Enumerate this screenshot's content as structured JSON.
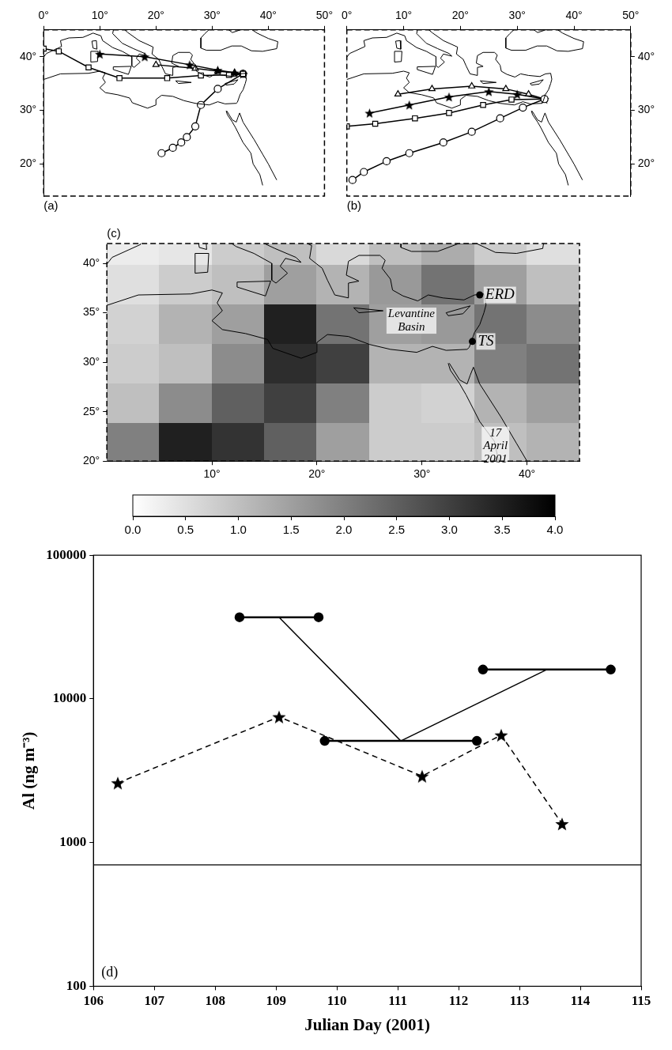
{
  "coastlines": [
    [
      [
        -1,
        38.5
      ],
      [
        0,
        39
      ],
      [
        -0.3,
        39.5
      ],
      [
        0.5,
        40.6
      ],
      [
        3.2,
        41.9
      ],
      [
        3,
        43
      ],
      [
        4.5,
        43.5
      ],
      [
        7,
        43.6
      ],
      [
        8.8,
        44.4
      ],
      [
        10.2,
        43.9
      ],
      [
        10.5,
        43
      ],
      [
        12.3,
        41.7
      ],
      [
        14,
        41
      ],
      [
        15.7,
        40
      ],
      [
        15.7,
        38.3
      ],
      [
        16.1,
        38
      ],
      [
        17.2,
        39
      ],
      [
        16.5,
        39.7
      ],
      [
        17,
        40.5
      ],
      [
        18.5,
        40.1
      ],
      [
        18,
        40.6
      ],
      [
        16,
        41.5
      ],
      [
        14,
        42.5
      ],
      [
        12.3,
        44.3
      ],
      [
        12.5,
        45.5
      ],
      [
        13.7,
        45.7
      ],
      [
        15,
        44.5
      ],
      [
        17,
        43
      ],
      [
        19.5,
        41.8
      ],
      [
        19.3,
        40.5
      ],
      [
        20.5,
        39.5
      ],
      [
        21,
        38.3
      ],
      [
        21.7,
        36.8
      ],
      [
        23,
        36.5
      ],
      [
        23,
        38
      ],
      [
        24,
        38.2
      ],
      [
        22.8,
        38.8
      ],
      [
        23,
        40.2
      ],
      [
        24,
        40.8
      ],
      [
        26,
        40.8
      ],
      [
        26.5,
        40.3
      ],
      [
        26.2,
        39.5
      ],
      [
        27,
        38.4
      ],
      [
        27.2,
        37.3
      ],
      [
        28.2,
        36.7
      ],
      [
        29.6,
        36.2
      ],
      [
        30.6,
        36.8
      ],
      [
        32,
        36.5
      ],
      [
        34,
        36.3
      ],
      [
        35,
        36.8
      ],
      [
        35.9,
        36.9
      ],
      [
        36.1,
        35.8
      ],
      [
        35.9,
        35
      ],
      [
        35.5,
        33.8
      ],
      [
        35,
        33
      ],
      [
        34.5,
        31.5
      ]
    ],
    [
      [
        -1,
        35.4
      ],
      [
        3,
        36.8
      ],
      [
        8,
        36.9
      ],
      [
        10,
        37.3
      ],
      [
        11,
        37
      ],
      [
        10.5,
        36
      ],
      [
        11,
        35.2
      ],
      [
        10,
        34.2
      ],
      [
        11,
        33.3
      ],
      [
        13.2,
        32.9
      ],
      [
        15.3,
        32.3
      ],
      [
        15.8,
        31.4
      ],
      [
        18.5,
        30.4
      ],
      [
        20,
        31
      ],
      [
        20,
        32
      ],
      [
        21,
        32.8
      ],
      [
        23,
        32.6
      ],
      [
        25,
        31.8
      ],
      [
        27,
        31.3
      ],
      [
        29.5,
        31
      ],
      [
        31,
        31.6
      ],
      [
        32.3,
        31.2
      ],
      [
        34.3,
        31.3
      ],
      [
        34.5,
        31.5
      ]
    ],
    [
      [
        28,
        43.5
      ],
      [
        28,
        41.6
      ],
      [
        29,
        41.2
      ],
      [
        31.5,
        41.2
      ],
      [
        33.5,
        42
      ],
      [
        35.2,
        42
      ],
      [
        37,
        41.1
      ],
      [
        39,
        41
      ],
      [
        41.5,
        41.5
      ],
      [
        41.7,
        42.8
      ],
      [
        40,
        43.4
      ],
      [
        38,
        44.4
      ],
      [
        37,
        45.1
      ],
      [
        35,
        45
      ],
      [
        33.6,
        44.5
      ],
      [
        32.6,
        45.3
      ],
      [
        33.5,
        46
      ],
      [
        31,
        46.6
      ],
      [
        30,
        45.8
      ],
      [
        29.6,
        45.2
      ],
      [
        28.7,
        44.3
      ],
      [
        28,
        43.5
      ]
    ],
    [
      [
        12.4,
        38.1
      ],
      [
        15.6,
        38.2
      ],
      [
        15.1,
        36.7
      ],
      [
        12.4,
        37.6
      ],
      [
        12.4,
        38.1
      ]
    ],
    [
      [
        8.4,
        41
      ],
      [
        9.7,
        41
      ],
      [
        9.6,
        39.1
      ],
      [
        8.4,
        39
      ],
      [
        8.4,
        41
      ]
    ],
    [
      [
        8.6,
        42.9
      ],
      [
        9.4,
        43
      ],
      [
        9.5,
        41.4
      ],
      [
        8.8,
        41.6
      ],
      [
        8.6,
        42.9
      ]
    ],
    [
      [
        23.5,
        35.5
      ],
      [
        26.3,
        35.2
      ],
      [
        24,
        35
      ],
      [
        23.5,
        35.5
      ]
    ],
    [
      [
        32.3,
        35
      ],
      [
        34.6,
        35.7
      ],
      [
        33.9,
        34.9
      ],
      [
        32.5,
        34.7
      ],
      [
        32.3,
        35
      ]
    ],
    [
      [
        32.5,
        29.9
      ],
      [
        32.7,
        29.2
      ],
      [
        33.6,
        27.8
      ],
      [
        34.2,
        26.7
      ],
      [
        35.5,
        24
      ],
      [
        36.9,
        22
      ],
      [
        37.3,
        20
      ],
      [
        38.5,
        18
      ],
      [
        39,
        16
      ]
    ],
    [
      [
        32.6,
        29.9
      ],
      [
        33.6,
        28.2
      ],
      [
        34.3,
        27.8
      ],
      [
        34.6,
        28.7
      ],
      [
        34.9,
        29.5
      ]
    ],
    [
      [
        34.9,
        29.5
      ],
      [
        35.5,
        27.8
      ],
      [
        37.5,
        24.5
      ],
      [
        39,
        21.8
      ],
      [
        40,
        20
      ],
      [
        41.5,
        17
      ]
    ]
  ],
  "chart_data": [
    {
      "type": "map",
      "label": "(a)",
      "xlim": [
        0,
        50
      ],
      "xticks": [
        {
          "value": 0,
          "label": "0°"
        },
        {
          "value": 10,
          "label": "10°"
        },
        {
          "value": 20,
          "label": "20°"
        },
        {
          "value": 30,
          "label": "30°"
        },
        {
          "value": 40,
          "label": "40°"
        },
        {
          "value": 50,
          "label": "50°"
        }
      ],
      "ylim": [
        14,
        45
      ],
      "yticks": [
        {
          "value": 20,
          "label": "20°"
        },
        {
          "value": 30,
          "label": "30°"
        },
        {
          "value": 40,
          "label": "40°"
        }
      ],
      "series": [
        {
          "marker": "square",
          "line_style": "solid",
          "color": "#000000",
          "x": [
            0,
            2.7,
            8,
            13.5,
            22,
            28,
            33,
            35.5
          ],
          "values": [
            41.5,
            41,
            38,
            36,
            36,
            36.5,
            36.6,
            36.8
          ]
        },
        {
          "marker": "star",
          "line_style": "solid",
          "color": "#000000",
          "x": [
            10,
            18,
            26,
            31,
            34,
            35.5
          ],
          "values": [
            40.5,
            40,
            38.5,
            37.5,
            37,
            36.8
          ]
        },
        {
          "marker": "triangle",
          "line_style": "solid",
          "color": "#000000",
          "x": [
            20,
            27,
            31,
            34,
            35.5
          ],
          "values": [
            38.5,
            37.8,
            37.3,
            37,
            36.8
          ]
        },
        {
          "marker": "circle",
          "line_style": "solid",
          "color": "#000000",
          "x": [
            21,
            23,
            24.5,
            25.5,
            27,
            28,
            31,
            35.5
          ],
          "values": [
            22,
            23,
            24,
            25,
            27,
            31,
            34,
            36.8
          ]
        }
      ]
    },
    {
      "type": "map",
      "label": "(b)",
      "xlim": [
        0,
        50
      ],
      "xticks": [
        {
          "value": 0,
          "label": "0°"
        },
        {
          "value": 10,
          "label": "10°"
        },
        {
          "value": 20,
          "label": "20°"
        },
        {
          "value": 30,
          "label": "30°"
        },
        {
          "value": 40,
          "label": "40°"
        },
        {
          "value": 50,
          "label": "50°"
        }
      ],
      "ylim": [
        14,
        45
      ],
      "yticks": [
        {
          "value": 20,
          "label": "20°"
        },
        {
          "value": 30,
          "label": "30°"
        },
        {
          "value": 40,
          "label": "40°"
        }
      ],
      "series": [
        {
          "marker": "circle",
          "line_style": "solid",
          "color": "#000000",
          "x": [
            1,
            3,
            7,
            11,
            17,
            22,
            27,
            31,
            34.8
          ],
          "values": [
            17,
            18.5,
            20.5,
            22,
            24,
            26,
            28.5,
            30.5,
            32.1
          ]
        },
        {
          "marker": "square",
          "line_style": "solid",
          "color": "#000000",
          "x": [
            0,
            5,
            12,
            18,
            24,
            29,
            34.8
          ],
          "values": [
            27,
            27.5,
            28.5,
            29.5,
            31,
            32,
            32.1
          ]
        },
        {
          "marker": "star",
          "line_style": "solid",
          "color": "#000000",
          "x": [
            4,
            11,
            18,
            25,
            30,
            34.8
          ],
          "values": [
            29.5,
            31,
            32.5,
            33.5,
            33,
            32.1
          ]
        },
        {
          "marker": "triangle",
          "line_style": "solid",
          "color": "#000000",
          "x": [
            9,
            15,
            22,
            28,
            32,
            34.8
          ],
          "values": [
            33,
            34,
            34.5,
            34,
            33,
            32.1
          ]
        }
      ]
    },
    {
      "type": "heatmap",
      "label": "(c)",
      "xlim": [
        0,
        45
      ],
      "xticks": [
        {
          "value": 10,
          "label": "10°"
        },
        {
          "value": 20,
          "label": "20°"
        },
        {
          "value": 30,
          "label": "30°"
        },
        {
          "value": 40,
          "label": "40°"
        }
      ],
      "ylim": [
        20,
        42
      ],
      "yticks": [
        {
          "value": 20,
          "label": "20°"
        },
        {
          "value": 25,
          "label": "25°"
        },
        {
          "value": 30,
          "label": "30°"
        },
        {
          "value": 35,
          "label": "35°"
        },
        {
          "value": 40,
          "label": "40°"
        }
      ],
      "x_edges": [
        0,
        5,
        10,
        15,
        20,
        25,
        30,
        35,
        40,
        45
      ],
      "y_edges": [
        20,
        24,
        28,
        32,
        36,
        40,
        42
      ],
      "cells": [
        [
          2.0,
          3.5,
          3.2,
          2.5,
          1.5,
          0.8,
          0.8,
          1.0,
          1.2
        ],
        [
          1.0,
          1.8,
          2.5,
          3.0,
          2.0,
          0.8,
          0.7,
          1.2,
          1.5
        ],
        [
          0.8,
          1.0,
          1.8,
          3.3,
          3.0,
          1.2,
          1.2,
          2.0,
          2.2
        ],
        [
          0.7,
          1.2,
          1.5,
          3.5,
          2.2,
          1.5,
          1.6,
          2.2,
          1.8
        ],
        [
          0.5,
          0.8,
          1.0,
          1.5,
          1.2,
          1.6,
          2.2,
          1.5,
          1.0
        ],
        [
          0.3,
          0.4,
          0.8,
          1.0,
          0.6,
          1.0,
          1.3,
          0.8,
          0.5
        ]
      ],
      "colorbar": {
        "range": [
          0,
          4
        ],
        "ticks": [
          {
            "value": 0,
            "label": "0.0"
          },
          {
            "value": 0.5,
            "label": "0.5"
          },
          {
            "value": 1,
            "label": "1.0"
          },
          {
            "value": 1.5,
            "label": "1.5"
          },
          {
            "value": 2,
            "label": "2.0"
          },
          {
            "value": 2.5,
            "label": "2.5"
          },
          {
            "value": 3,
            "label": "3.0"
          },
          {
            "value": 3.5,
            "label": "3.5"
          },
          {
            "value": 4,
            "label": "4.0"
          }
        ]
      },
      "annotations": [
        {
          "text": "ERD",
          "x": 35.5,
          "y": 36.8,
          "marker": "circle"
        },
        {
          "text": "TS",
          "x": 34.8,
          "y": 32.1,
          "marker": "circle"
        },
        {
          "text": "Levantine Basin",
          "x": 29,
          "y": 34.2
        },
        {
          "text": "17 April 2001",
          "x": 37,
          "y": 21.5
        }
      ]
    },
    {
      "type": "line",
      "label": "(d)",
      "log": "y",
      "x_label": "Julian Day (2001)",
      "y_label": "Al (ng m⁻³)",
      "xlim": [
        106,
        115
      ],
      "xticks": [
        106,
        107,
        108,
        109,
        110,
        111,
        112,
        113,
        114,
        115
      ],
      "ylim": [
        100,
        100000
      ],
      "yticks": [
        100,
        1000,
        10000,
        100000
      ],
      "reference_value": 700,
      "series": [
        {
          "type": "interval",
          "marker": "circle",
          "line_style": "solid",
          "color": "#000000",
          "start": [
            108.4,
            109.8,
            112.4
          ],
          "end": [
            109.7,
            112.3,
            114.5
          ],
          "values": [
            37000,
            5100,
            16000
          ]
        },
        {
          "type": "line",
          "marker": "star",
          "line_style": "dashed",
          "color": "#000000",
          "x": [
            106.4,
            109.05,
            111.4,
            112.7,
            113.7
          ],
          "values": [
            2600,
            7500,
            2900,
            5600,
            1350
          ]
        }
      ]
    }
  ]
}
